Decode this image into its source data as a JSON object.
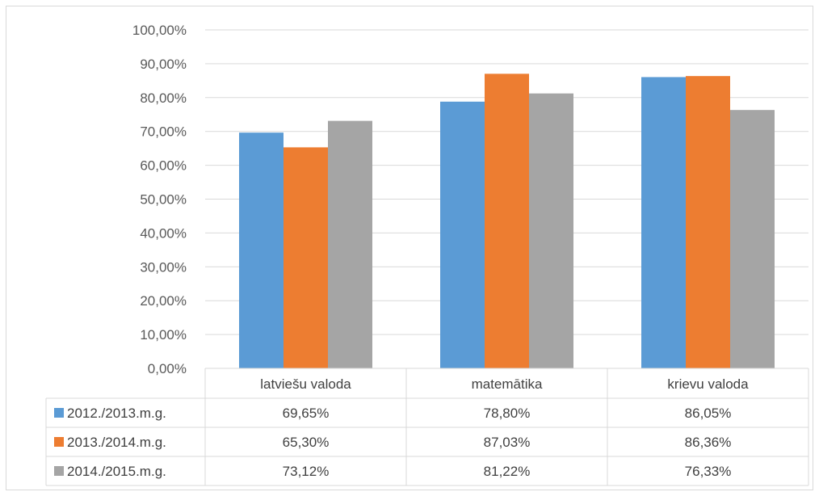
{
  "chart_data": {
    "type": "bar",
    "categories": [
      "latviešu valoda",
      "matemātika",
      "krievu valoda"
    ],
    "series": [
      {
        "name": "2012./2013.m.g.",
        "color": "#5b9bd5",
        "values": [
          69.65,
          78.8,
          86.05
        ],
        "labels": [
          "69,65%",
          "78,80%",
          "86,05%"
        ]
      },
      {
        "name": "2013./2014.m.g.",
        "color": "#ed7d31",
        "values": [
          65.3,
          87.03,
          86.36
        ],
        "labels": [
          "65,30%",
          "87,03%",
          "86,36%"
        ]
      },
      {
        "name": "2014./2015.m.g.",
        "color": "#a5a5a5",
        "values": [
          73.12,
          81.22,
          76.33
        ],
        "labels": [
          "73,12%",
          "81,22%",
          "76,33%"
        ]
      }
    ],
    "ylim": [
      0,
      100
    ],
    "yticks": [
      0,
      10,
      20,
      30,
      40,
      50,
      60,
      70,
      80,
      90,
      100
    ],
    "ytick_labels": [
      "0,00%",
      "10,00%",
      "20,00%",
      "30,00%",
      "40,00%",
      "50,00%",
      "60,00%",
      "70,00%",
      "80,00%",
      "90,00%",
      "100,00%"
    ],
    "grid": true,
    "data_table": true,
    "legend": "data-table-left"
  }
}
